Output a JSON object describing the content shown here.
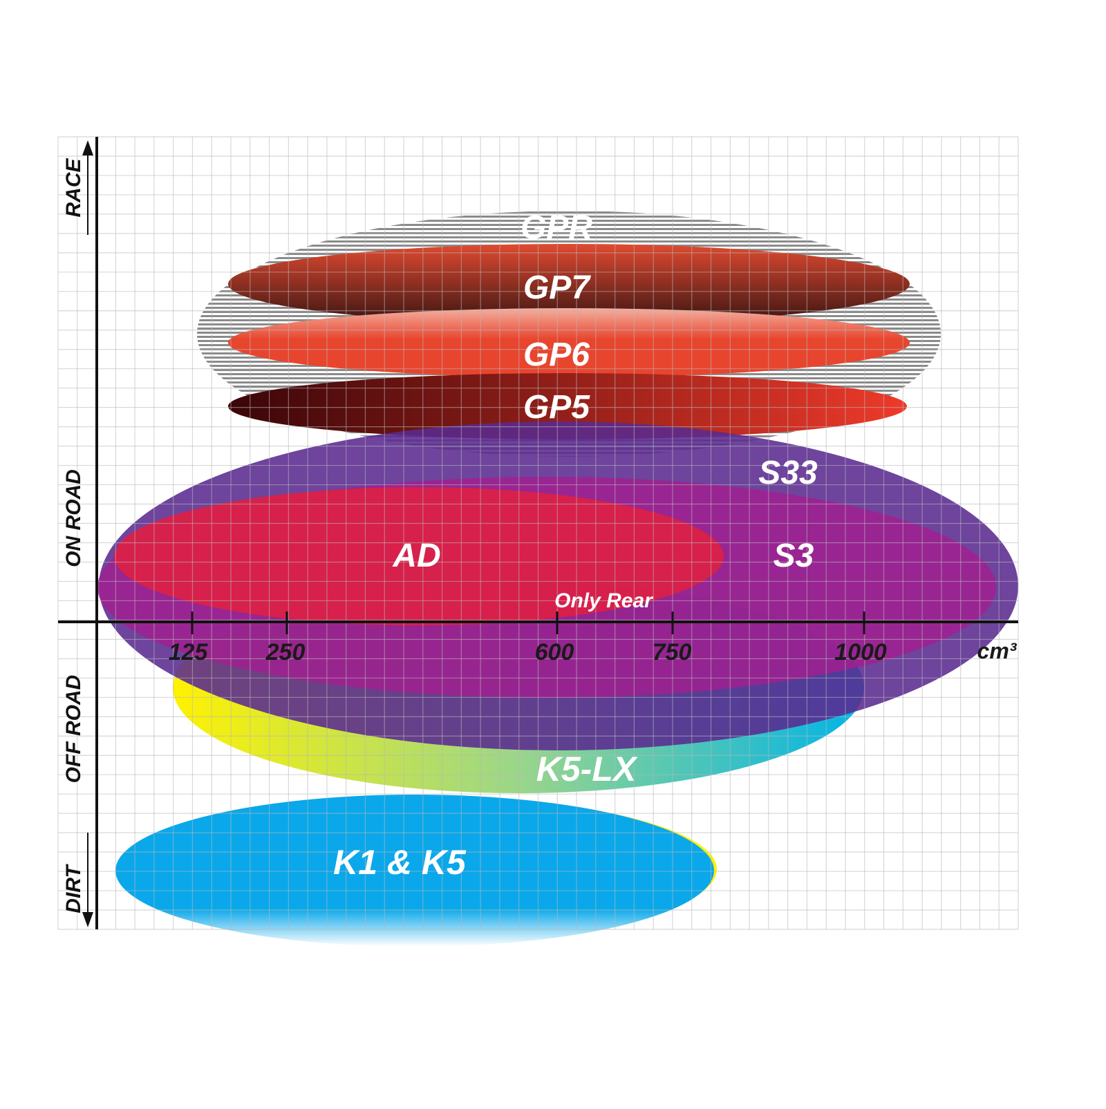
{
  "chart_data": {
    "type": "diagram",
    "y_axis_labels": [
      "RACE",
      "ON ROAD",
      "OFF ROAD",
      "DIRT"
    ],
    "x_ticks": [
      "125",
      "250",
      "600",
      "750",
      "1000"
    ],
    "x_unit": "cm³",
    "grid": true,
    "tires": [
      {
        "key": "gpr",
        "label": "GPR",
        "colors": [
          "#9a9a9a",
          "#ffffff"
        ]
      },
      {
        "key": "gp7",
        "label": "GP7",
        "colors": [
          "#e04a30",
          "#3a1412"
        ]
      },
      {
        "key": "gp6",
        "label": "GP6",
        "colors": [
          "#f0a090",
          "#e8452e"
        ]
      },
      {
        "key": "gp5",
        "label": "GP5",
        "colors": [
          "#3a0508",
          "#ee3a2a"
        ]
      },
      {
        "key": "k5lx",
        "label": "K5-LX",
        "colors": [
          "#fff200",
          "#00b4e8"
        ]
      },
      {
        "key": "s33",
        "label": "S33",
        "colors": [
          "#5a2a90"
        ]
      },
      {
        "key": "s3",
        "label": "S3",
        "colors": [
          "#a41e90"
        ]
      },
      {
        "key": "ad",
        "label": "AD",
        "colors": [
          "#dc1f45"
        ]
      },
      {
        "key": "k1k5",
        "label": "K1 & K5",
        "colors": [
          "#0aa8ea",
          "#fff200"
        ]
      }
    ],
    "annotations": [
      "Only Rear"
    ]
  }
}
